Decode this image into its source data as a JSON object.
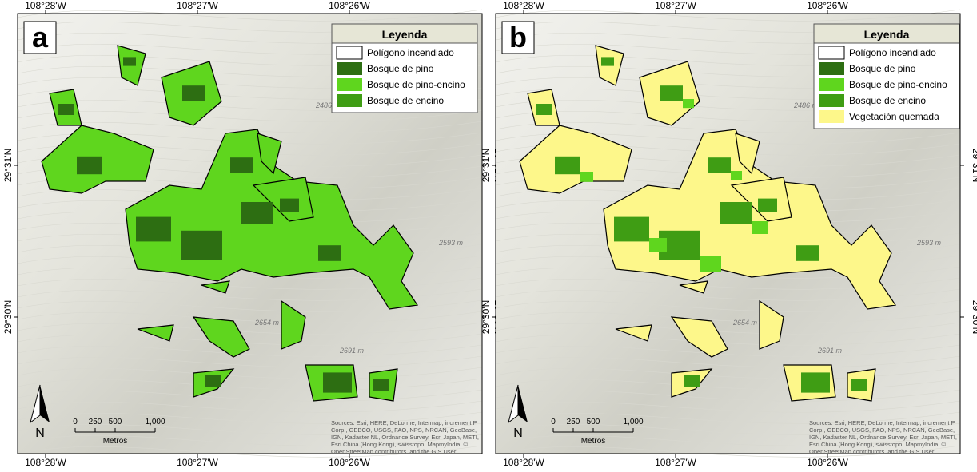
{
  "coordinates": {
    "longitudes": [
      "108°28'W",
      "108°27'W",
      "108°26'W"
    ],
    "latitudes": [
      "29°31'N",
      "29°30'N"
    ]
  },
  "elevations": [
    "2486 m",
    "2593 m",
    "2654 m",
    "2691 m"
  ],
  "scale_bar": {
    "labels": [
      "0",
      "250",
      "500",
      "1,000"
    ],
    "unit": "Metros"
  },
  "north_arrow": "N",
  "attribution": "Sources: Esri, HERE, DeLorme, Intermap, increment P Corp., GEBCO, USGS, FAO, NPS, NRCAN, GeoBase, IGN, Kadaster NL, Ordnance Survey, Esri Japan, METI, Esri China (Hong Kong), swisstopo, MapmyIndia, © OpenStreetMap contributors, and the GIS User Community",
  "panels": [
    {
      "label": "a",
      "legend": {
        "title": "Leyenda",
        "items": [
          {
            "label": "Polígono incendiado",
            "color": "#ffffff"
          },
          {
            "label": "Bosque de pino",
            "color": "#2d6e12"
          },
          {
            "label": "Bosque de pino-encino",
            "color": "#5fd61e"
          },
          {
            "label": "Bosque de encino",
            "color": "#3f9d14"
          }
        ]
      }
    },
    {
      "label": "b",
      "legend": {
        "title": "Leyenda",
        "items": [
          {
            "label": "Polígono incendiado",
            "color": "#ffffff"
          },
          {
            "label": "Bosque de pino",
            "color": "#2d6e12"
          },
          {
            "label": "Bosque de pino-encino",
            "color": "#5fd61e"
          },
          {
            "label": "Bosque de encino",
            "color": "#3f9d14"
          },
          {
            "label": "Vegetación quemada",
            "color": "#fdf78a"
          }
        ]
      }
    }
  ]
}
